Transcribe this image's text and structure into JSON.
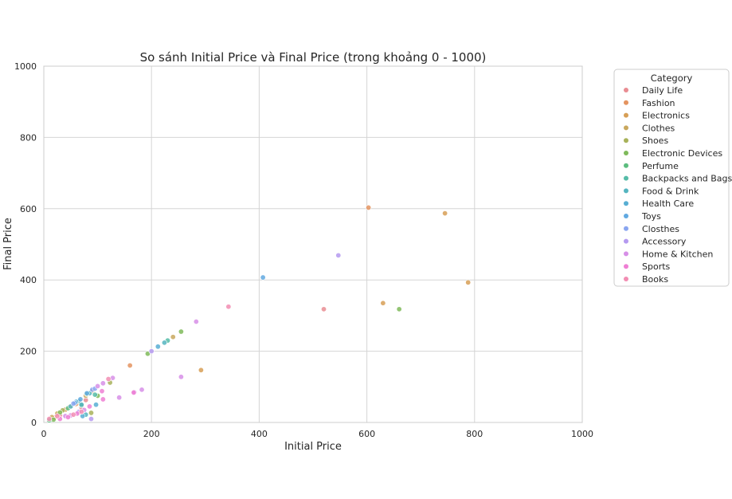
{
  "chart_data": {
    "type": "scatter",
    "title": "So sánh Initial Price và Final Price (trong khoảng 0 - 1000)",
    "xlabel": "Initial Price",
    "ylabel": "Final Price",
    "xlim": [
      0,
      1000
    ],
    "ylim": [
      0,
      1000
    ],
    "xticks": [
      0,
      200,
      400,
      600,
      800,
      1000
    ],
    "yticks": [
      0,
      200,
      400,
      600,
      800,
      1000
    ],
    "grid": true,
    "legend": {
      "title": "Category",
      "placement": "outside-right-top"
    },
    "series": [
      {
        "name": "Daily Life",
        "color": "#e98d93",
        "points": [
          [
            78,
            63
          ],
          [
            520,
            318
          ],
          [
            70,
            42
          ],
          [
            30,
            20
          ]
        ]
      },
      {
        "name": "Fashion",
        "color": "#e49460",
        "points": [
          [
            603,
            603
          ],
          [
            160,
            160
          ],
          [
            20,
            14
          ],
          [
            48,
            44
          ],
          [
            60,
            52
          ]
        ]
      },
      {
        "name": "Electronics",
        "color": "#d79f56",
        "points": [
          [
            745,
            587
          ],
          [
            788,
            393
          ],
          [
            292,
            147
          ],
          [
            630,
            335
          ],
          [
            90,
            88
          ],
          [
            40,
            36
          ]
        ]
      },
      {
        "name": "Clothes",
        "color": "#c9a85e",
        "points": [
          [
            240,
            240
          ],
          [
            78,
            75
          ],
          [
            15,
            15
          ],
          [
            25,
            25
          ]
        ]
      },
      {
        "name": "Shoes",
        "color": "#a8b25a",
        "points": [
          [
            88,
            27
          ],
          [
            123,
            112
          ],
          [
            35,
            34
          ]
        ]
      },
      {
        "name": "Electronic Devices",
        "color": "#7fba5b",
        "points": [
          [
            660,
            318
          ],
          [
            255,
            255
          ],
          [
            193,
            193
          ],
          [
            100,
            75
          ],
          [
            18,
            8
          ],
          [
            30,
            28
          ]
        ]
      },
      {
        "name": "Perfume",
        "color": "#5cbd7f",
        "points": [
          [
            80,
            80
          ],
          [
            70,
            48
          ],
          [
            45,
            40
          ],
          [
            10,
            6
          ]
        ]
      },
      {
        "name": "Backpacks and Bags",
        "color": "#56bca8",
        "points": [
          [
            230,
            230
          ],
          [
            95,
            78
          ],
          [
            65,
            60
          ]
        ]
      },
      {
        "name": "Food & Drink",
        "color": "#55b5c0",
        "points": [
          [
            224,
            224
          ],
          [
            78,
            22
          ],
          [
            70,
            50
          ],
          [
            50,
            45
          ],
          [
            85,
            82
          ]
        ]
      },
      {
        "name": "Health Care",
        "color": "#58aed3",
        "points": [
          [
            212,
            213
          ],
          [
            97,
            50
          ],
          [
            72,
            18
          ],
          [
            60,
            58
          ]
        ]
      },
      {
        "name": "Toys",
        "color": "#61a9e1",
        "points": [
          [
            407,
            407
          ],
          [
            68,
            65
          ],
          [
            80,
            82
          ],
          [
            58,
            55
          ]
        ]
      },
      {
        "name": "Closthes",
        "color": "#8aa6f0",
        "points": [
          [
            90,
            92
          ],
          [
            55,
            53
          ],
          [
            95,
            95
          ]
        ]
      },
      {
        "name": "Accessory",
        "color": "#b59af0",
        "points": [
          [
            547,
            469
          ],
          [
            200,
            200
          ],
          [
            88,
            10
          ],
          [
            65,
            30
          ]
        ]
      },
      {
        "name": "Home & Kitchen",
        "color": "#d78fe7",
        "points": [
          [
            283,
            283
          ],
          [
            255,
            128
          ],
          [
            182,
            92
          ],
          [
            168,
            85
          ],
          [
            140,
            70
          ],
          [
            128,
            125
          ],
          [
            110,
            110
          ],
          [
            100,
            102
          ],
          [
            75,
            35
          ],
          [
            50,
            20
          ],
          [
            40,
            18
          ]
        ]
      },
      {
        "name": "Sports",
        "color": "#ef7fd4",
        "points": [
          [
            167,
            84
          ],
          [
            108,
            88
          ],
          [
            110,
            65
          ],
          [
            85,
            45
          ],
          [
            62,
            25
          ],
          [
            45,
            15
          ],
          [
            30,
            10
          ]
        ]
      },
      {
        "name": "Books",
        "color": "#f28db3",
        "points": [
          [
            343,
            325
          ],
          [
            120,
            122
          ],
          [
            70,
            30
          ],
          [
            55,
            22
          ],
          [
            25,
            18
          ],
          [
            10,
            10
          ]
        ]
      }
    ]
  }
}
